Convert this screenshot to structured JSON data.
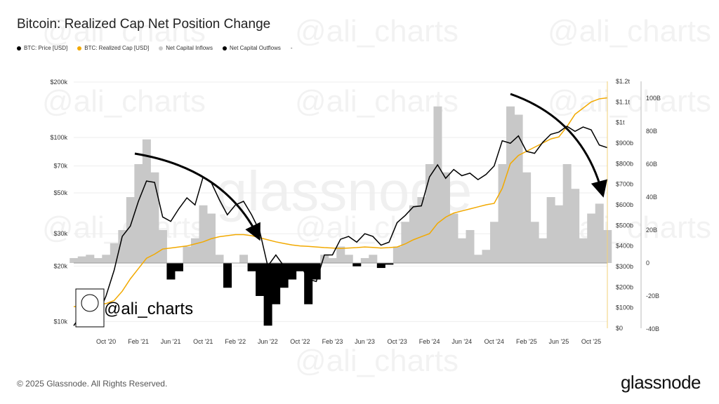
{
  "title": "Bitcoin: Realized Cap Net Position Change",
  "legend": [
    {
      "label": "BTC: Price [USD]",
      "color": "#000000"
    },
    {
      "label": "BTC: Realized Cap [USD]",
      "color": "#f2a900"
    },
    {
      "label": "Net Capital Inflows",
      "color": "#cccccc"
    },
    {
      "label": "Net Capital Outflows",
      "color": "#000000"
    },
    {
      "label": "-",
      "color": ""
    }
  ],
  "footer": "© 2025 Glassnode. All Rights Reserved.",
  "logo": "glassnode",
  "watermark": "@ali_charts",
  "chart_watermark": "glassnode",
  "chart_data": {
    "type": "line",
    "title": "Bitcoin: Realized Cap Net Position Change",
    "x_ticks": [
      "Oct '20",
      "Feb '21",
      "Jun '21",
      "Oct '21",
      "Feb '22",
      "Jun '22",
      "Oct '22",
      "Feb '23",
      "Jun '23",
      "Oct '23",
      "Feb '24",
      "Jun '24",
      "Oct '24",
      "Feb '25",
      "Jun '25",
      "Oct '25"
    ],
    "x_tick_dates": [
      "2020-10",
      "2021-02",
      "2021-06",
      "2021-10",
      "2022-02",
      "2022-06",
      "2022-10",
      "2023-02",
      "2023-06",
      "2023-10",
      "2024-02",
      "2024-06",
      "2024-10",
      "2025-02",
      "2025-06",
      "2025-10"
    ],
    "x_range": [
      "2020-06",
      "2025-12"
    ],
    "y_left": {
      "scale": "log",
      "ticks": [
        "$10k",
        "$20k",
        "$30k",
        "$50k",
        "$70k",
        "$100k",
        "$200k"
      ],
      "tick_values": [
        10000,
        20000,
        30000,
        50000,
        70000,
        100000,
        200000
      ]
    },
    "y_right1": {
      "ticks": [
        "$0",
        "$100b",
        "$200b",
        "$300b",
        "$400b",
        "$500b",
        "$600b",
        "$700b",
        "$800b",
        "$900b",
        "$1t",
        "$1.1t",
        "$1.2t"
      ],
      "range": [
        0,
        1200
      ]
    },
    "y_right2": {
      "ticks": [
        "-40B",
        "-20B",
        "0",
        "20B",
        "40B",
        "60B",
        "80B",
        "100B"
      ],
      "tick_values": [
        -40,
        -20,
        0,
        20,
        40,
        60,
        80,
        100
      ],
      "range": [
        -40,
        110
      ]
    },
    "dates": [
      "2020-06",
      "2020-07",
      "2020-08",
      "2020-09",
      "2020-10",
      "2020-11",
      "2020-12",
      "2021-01",
      "2021-02",
      "2021-03",
      "2021-04",
      "2021-05",
      "2021-06",
      "2021-07",
      "2021-08",
      "2021-09",
      "2021-10",
      "2021-11",
      "2021-12",
      "2022-01",
      "2022-02",
      "2022-03",
      "2022-04",
      "2022-05",
      "2022-06",
      "2022-07",
      "2022-08",
      "2022-09",
      "2022-10",
      "2022-11",
      "2022-12",
      "2023-01",
      "2023-02",
      "2023-03",
      "2023-04",
      "2023-05",
      "2023-06",
      "2023-07",
      "2023-08",
      "2023-09",
      "2023-10",
      "2023-11",
      "2023-12",
      "2024-01",
      "2024-02",
      "2024-03",
      "2024-04",
      "2024-05",
      "2024-06",
      "2024-07",
      "2024-08",
      "2024-09",
      "2024-10",
      "2024-11",
      "2024-12",
      "2025-01",
      "2025-02",
      "2025-03",
      "2025-04",
      "2025-05",
      "2025-06",
      "2025-07",
      "2025-08",
      "2025-09",
      "2025-10",
      "2025-11",
      "2025-12"
    ],
    "series": [
      {
        "name": "BTC: Price [USD]",
        "axis": "left",
        "values": [
          9500,
          11000,
          11700,
          10800,
          13800,
          19000,
          29000,
          33000,
          45000,
          58000,
          57000,
          37000,
          35000,
          41000,
          47000,
          43000,
          61000,
          57000,
          46000,
          38000,
          43000,
          45000,
          38000,
          31000,
          20000,
          23000,
          20000,
          19400,
          20500,
          17000,
          16500,
          23000,
          23000,
          28000,
          29000,
          27000,
          30000,
          29000,
          26000,
          27000,
          34500,
          37700,
          42000,
          42500,
          61000,
          71000,
          60000,
          67000,
          62000,
          64000,
          59000,
          63000,
          70000,
          96000,
          93000,
          102000,
          84000,
          82000,
          94000,
          104000,
          107000,
          115000,
          108000,
          114000,
          110000,
          91000,
          88000
        ]
      },
      {
        "name": "BTC: Realized Cap [USD]",
        "axis": "right1",
        "unit": "b",
        "values": [
          105,
          108,
          112,
          115,
          120,
          135,
          180,
          240,
          290,
          340,
          360,
          385,
          390,
          395,
          400,
          410,
          420,
          435,
          445,
          450,
          455,
          455,
          450,
          440,
          430,
          420,
          412,
          405,
          400,
          398,
          395,
          392,
          390,
          388,
          390,
          392,
          395,
          393,
          390,
          392,
          395,
          410,
          430,
          445,
          460,
          510,
          540,
          560,
          570,
          580,
          590,
          600,
          607,
          680,
          800,
          840,
          860,
          880,
          900,
          920,
          930,
          980,
          1040,
          1070,
          1100,
          1115,
          1120
        ]
      },
      {
        "name": "Net Capital Flow",
        "axis": "right2",
        "unit": "B",
        "values": [
          3,
          4,
          5,
          3,
          5,
          12,
          20,
          40,
          60,
          75,
          55,
          20,
          -10,
          -5,
          10,
          15,
          35,
          30,
          5,
          -15,
          0,
          5,
          -5,
          -20,
          -38,
          -25,
          -15,
          -10,
          -5,
          -25,
          -10,
          5,
          3,
          10,
          5,
          -2,
          3,
          5,
          -3,
          -1,
          10,
          25,
          35,
          40,
          60,
          95,
          55,
          30,
          15,
          20,
          5,
          8,
          25,
          60,
          95,
          90,
          55,
          25,
          15,
          40,
          35,
          60,
          45,
          15,
          30,
          36,
          20
        ]
      }
    ],
    "annotations": [
      "down-arrow 2021-03 to 2022-06",
      "down-arrow 2024-12 to 2025-12"
    ],
    "grid": "horizontal"
  }
}
